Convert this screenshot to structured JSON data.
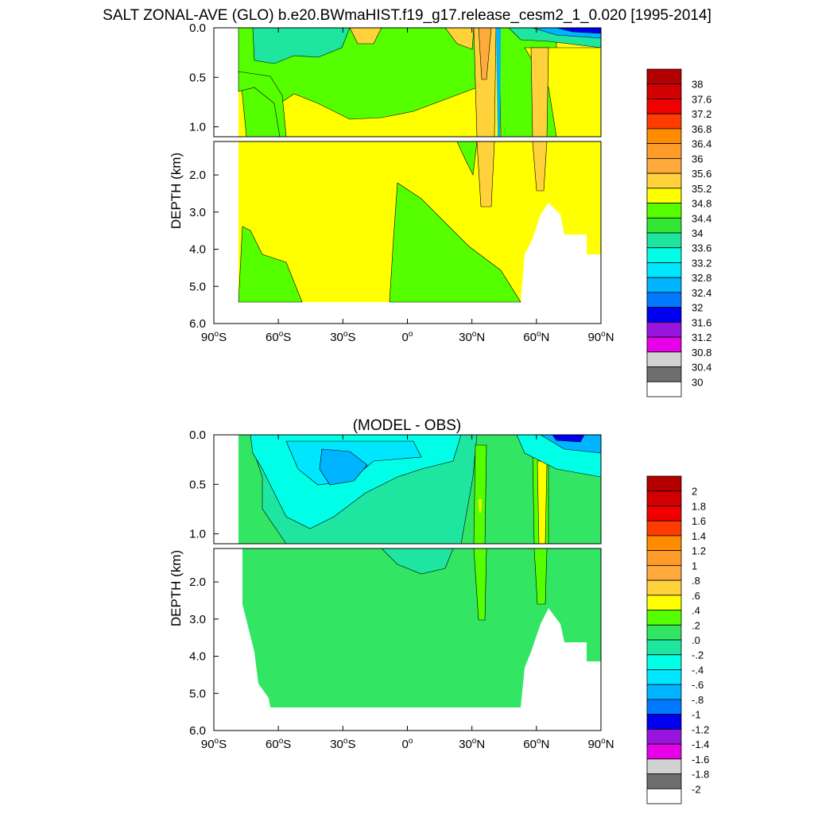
{
  "title": "SALT ZONAL-AVE (GLO) b.e20.BWmaHIST.f19_g17.release_cesm2_1_0.020 [1995-2014]",
  "chart_data": [
    {
      "type": "heatmap",
      "title": "",
      "ylabel": "DEPTH (km)",
      "xlim": [
        -90,
        90
      ],
      "ylim": [
        0,
        6
      ],
      "x_ticks": [
        -90,
        -60,
        -30,
        0,
        30,
        60,
        90
      ],
      "x_tick_labels": [
        "90°S",
        "60°S",
        "30°S",
        "0°",
        "30°N",
        "60°N",
        "90°N"
      ],
      "upper_y_ticks": [
        "0.0",
        "0.5",
        "1.0"
      ],
      "lower_y_ticks": [
        "2.0",
        "3.0",
        "4.0",
        "5.0",
        "6.0"
      ],
      "colorbar_labels": [
        "38",
        "37.6",
        "37.2",
        "36.8",
        "36.4",
        "36",
        "35.6",
        "35.2",
        "34.8",
        "34.4",
        "34",
        "33.6",
        "33.2",
        "32.8",
        "32.4",
        "32",
        "31.6",
        "31.2",
        "30.8",
        "30.4",
        "30"
      ],
      "colorbar_colors": [
        "#b40000",
        "#d20000",
        "#f00000",
        "#ff3c00",
        "#ff8c00",
        "#ff9b28",
        "#ffaa3c",
        "#ffd23c",
        "#ffff00",
        "#55ff00",
        "#32e632",
        "#1ee6a0",
        "#00ffe6",
        "#00e6ff",
        "#00b4ff",
        "#0078ff",
        "#0000f0",
        "#9614dc",
        "#e600e6",
        "#d2d2d2",
        "#6e6e6e",
        "#ffffff"
      ],
      "regions": [
        {
          "name": "deep-yellow",
          "value": 34.8
        },
        {
          "name": "upper-green",
          "value": 34.4
        },
        {
          "name": "southern-deep-green",
          "value": 34.4
        },
        {
          "name": "subtropical-cyan",
          "value": 34.0
        },
        {
          "name": "mediterranean-tongue",
          "value": 35.6
        },
        {
          "name": "arctic-surface",
          "value": 32.0
        }
      ]
    },
    {
      "type": "heatmap",
      "title": "(MODEL - OBS)",
      "ylabel": "DEPTH (km)",
      "xlim": [
        -90,
        90
      ],
      "ylim": [
        0,
        6
      ],
      "x_ticks": [
        -90,
        -60,
        -30,
        0,
        30,
        60,
        90
      ],
      "x_tick_labels": [
        "90°S",
        "60°S",
        "30°S",
        "0°",
        "30°N",
        "60°N",
        "90°N"
      ],
      "upper_y_ticks": [
        "0.0",
        "0.5",
        "1.0"
      ],
      "lower_y_ticks": [
        "2.0",
        "3.0",
        "4.0",
        "5.0",
        "6.0"
      ],
      "colorbar_labels": [
        "2",
        "1.8",
        "1.6",
        "1.4",
        "1.2",
        "1",
        ".8",
        ".6",
        ".4",
        ".2",
        ".0",
        "-.2",
        "-.4",
        "-.6",
        "-.8",
        "-1",
        "-1.2",
        "-1.4",
        "-1.6",
        "-1.8",
        "-2"
      ],
      "colorbar_colors": [
        "#b40000",
        "#d20000",
        "#f00000",
        "#ff3c00",
        "#ff8c00",
        "#ff9b28",
        "#ffaa3c",
        "#ffd23c",
        "#ffff00",
        "#55ff00",
        "#32e664",
        "#1ee6a0",
        "#00ffe6",
        "#00e6ff",
        "#00b4ff",
        "#0078ff",
        "#0000f0",
        "#9614dc",
        "#e600e6",
        "#d2d2d2",
        "#6e6e6e",
        "#ffffff"
      ],
      "regions": [
        {
          "name": "deep-green",
          "value": 0.1
        },
        {
          "name": "intermediate-teal",
          "value": -0.1
        },
        {
          "name": "upper-cyan",
          "value": -0.3
        },
        {
          "name": "subantarctic-blue",
          "value": -0.5
        },
        {
          "name": "mediterranean-anomaly",
          "value": 0.3
        },
        {
          "name": "arctic-surface-anomaly",
          "value": -1.0
        }
      ]
    }
  ]
}
